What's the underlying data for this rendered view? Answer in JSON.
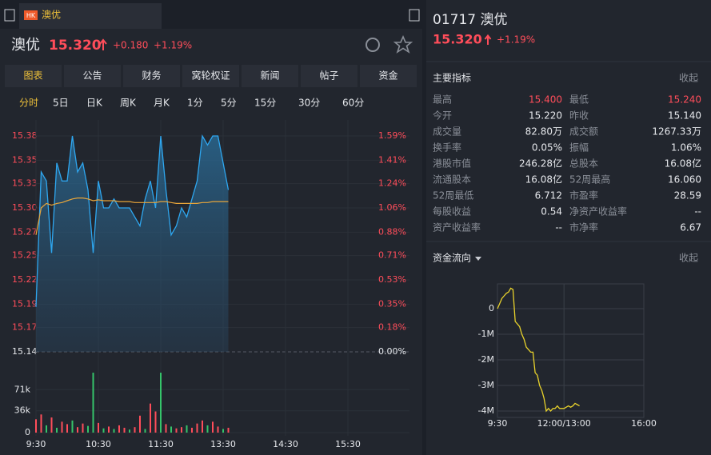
{
  "tab": {
    "badge": "HK",
    "name": "澳优"
  },
  "header": {
    "name": "澳优",
    "price": "15.320",
    "change": "+0.180",
    "pct": "+1.19%"
  },
  "tabs": [
    "图表",
    "公告",
    "财务",
    "窝轮权证",
    "新闻",
    "帖子",
    "资金"
  ],
  "periods": [
    "分时",
    "5日",
    "日K",
    "周K",
    "月K",
    "1分",
    "5分",
    "15分",
    "30分",
    "60分"
  ],
  "intraday": {
    "type": "line",
    "x": [
      "9:30",
      "9:35",
      "9:40",
      "9:45",
      "9:50",
      "9:55",
      "10:00",
      "10:05",
      "10:10",
      "10:15",
      "10:20",
      "10:25",
      "10:30",
      "10:35",
      "10:40",
      "10:45",
      "10:50",
      "10:55",
      "11:00",
      "11:05",
      "11:10",
      "11:15",
      "11:20",
      "11:25",
      "11:30",
      "11:35",
      "11:40",
      "11:45",
      "11:50",
      "11:55",
      "12:00",
      "13:05",
      "13:10",
      "13:15",
      "13:20",
      "13:25",
      "13:30",
      "13:35"
    ],
    "price": {
      "color": "#2ea7f0",
      "values": [
        15.19,
        15.34,
        15.33,
        15.25,
        15.35,
        15.33,
        15.33,
        15.38,
        15.34,
        15.35,
        15.32,
        15.25,
        15.33,
        15.3,
        15.3,
        15.31,
        15.3,
        15.3,
        15.3,
        15.29,
        15.28,
        15.31,
        15.33,
        15.3,
        15.38,
        15.32,
        15.27,
        15.28,
        15.3,
        15.29,
        15.31,
        15.33,
        15.38,
        15.37,
        15.38,
        15.38,
        15.35,
        15.32
      ]
    },
    "average": {
      "color": "#e8a53a",
      "values": [
        15.27,
        15.3,
        15.305,
        15.303,
        15.305,
        15.306,
        15.308,
        15.31,
        15.311,
        15.311,
        15.31,
        15.308,
        15.309,
        15.308,
        15.308,
        15.308,
        15.307,
        15.307,
        15.307,
        15.306,
        15.306,
        15.306,
        15.306,
        15.306,
        15.307,
        15.307,
        15.306,
        15.305,
        15.305,
        15.305,
        15.305,
        15.305,
        15.306,
        15.306,
        15.307,
        15.307,
        15.307,
        15.307
      ]
    },
    "xlim": [
      "9:30",
      "16:00"
    ],
    "xticks": [
      "9:30",
      "10:30",
      "11:30",
      "13:30",
      "14:30",
      "15:30"
    ],
    "ylim": [
      15.14,
      15.38
    ],
    "yticks": [
      {
        "value": 15.14,
        "label": "15.14"
      },
      {
        "value": 15.167,
        "label": "15.17"
      },
      {
        "value": 15.193,
        "label": "15.19"
      },
      {
        "value": 15.22,
        "label": "15.22"
      },
      {
        "value": 15.247,
        "label": "15.25"
      },
      {
        "value": 15.273,
        "label": "15.27"
      },
      {
        "value": 15.3,
        "label": "15.30"
      },
      {
        "value": 15.327,
        "label": "15.33"
      },
      {
        "value": 15.353,
        "label": "15.35"
      },
      {
        "value": 15.38,
        "label": "15.38"
      }
    ],
    "y2lim": [
      0,
      1.59
    ],
    "y2ticks": [
      {
        "value": 0,
        "label": "0.00%"
      },
      {
        "value": 0.18,
        "label": "0.18%"
      },
      {
        "value": 0.35,
        "label": "0.35%"
      },
      {
        "value": 0.53,
        "label": "0.53%"
      },
      {
        "value": 0.71,
        "label": "0.71%"
      },
      {
        "value": 0.88,
        "label": "0.88%"
      },
      {
        "value": 1.06,
        "label": "1.06%"
      },
      {
        "value": 1.24,
        "label": "1.24%"
      },
      {
        "value": 1.41,
        "label": "1.41%"
      },
      {
        "value": 1.59,
        "label": "1.59%"
      }
    ]
  },
  "volume": {
    "type": "bar",
    "values": [
      22000,
      30000,
      12000,
      25000,
      8000,
      18000,
      14000,
      20000,
      9000,
      15000,
      11000,
      99000,
      16000,
      7000,
      10000,
      6000,
      12000,
      8000,
      5000,
      9000,
      28000,
      6000,
      48000,
      35000,
      99000,
      14000,
      10000,
      7000,
      9000,
      12000,
      8000,
      15000,
      20000,
      12000,
      18000,
      10000,
      6000,
      8000
    ],
    "colors": [
      "#ff4d5a",
      "#ff4d5a",
      "#35c46a",
      "#ff4d5a",
      "#35c46a",
      "#ff4d5a",
      "#ff4d5a",
      "#35c46a",
      "#ff4d5a",
      "#ff4d5a",
      "#35c46a",
      "#35c46a",
      "#ff4d5a",
      "#35c46a",
      "#ff4d5a",
      "#35c46a",
      "#ff4d5a",
      "#ff4d5a",
      "#35c46a",
      "#ff4d5a",
      "#ff4d5a",
      "#35c46a",
      "#ff4d5a",
      "#ff4d5a",
      "#35c46a",
      "#ff4d5a",
      "#35c46a",
      "#ff4d5a",
      "#ff4d5a",
      "#35c46a",
      "#ff4d5a",
      "#ff4d5a",
      "#ff4d5a",
      "#35c46a",
      "#ff4d5a",
      "#ff4d5a",
      "#35c46a",
      "#ff4d5a"
    ],
    "ylim": [
      0,
      107000
    ],
    "yticks": [
      0,
      {
        "value": 36000,
        "label": "36k"
      },
      {
        "value": 71000,
        "label": "71k"
      }
    ]
  },
  "panel": {
    "title": "01717 澳优",
    "price": "15.320",
    "pct": "+1.19%"
  },
  "indicators": {
    "title": "主要指标",
    "collapse": "收起",
    "rows": [
      [
        {
          "label": "最高",
          "value": "15.400",
          "color": "#ff4d5a"
        },
        {
          "label": "最低",
          "value": "15.240",
          "color": "#ff4d5a"
        }
      ],
      [
        {
          "label": "今开",
          "value": "15.220"
        },
        {
          "label": "昨收",
          "value": "15.140"
        }
      ],
      [
        {
          "label": "成交量",
          "value": "82.80万"
        },
        {
          "label": "成交额",
          "value": "1267.33万"
        }
      ],
      [
        {
          "label": "换手率",
          "value": "0.05%"
        },
        {
          "label": "振幅",
          "value": "1.06%"
        }
      ],
      [
        {
          "label": "港股市值",
          "value": "246.28亿"
        },
        {
          "label": "总股本",
          "value": "16.08亿"
        }
      ],
      [
        {
          "label": "流通股本",
          "value": "16.08亿"
        },
        {
          "label": "52周最高",
          "value": "16.060"
        }
      ],
      [
        {
          "label": "52周最低",
          "value": "6.712"
        },
        {
          "label": "市盈率",
          "value": "28.59"
        }
      ],
      [
        {
          "label": "每股收益",
          "value": "0.54"
        },
        {
          "label": "净资产收益率",
          "value": "--"
        }
      ],
      [
        {
          "label": "资产收益率",
          "value": "--"
        },
        {
          "label": "市净率",
          "value": "6.67"
        }
      ]
    ]
  },
  "flow": {
    "type": "line",
    "title": "资金流向",
    "collapse": "收起",
    "color": "#e8d22c",
    "x": [
      "9:30",
      "9:35",
      "9:40",
      "9:45",
      "9:50",
      "9:55",
      "10:00",
      "10:05",
      "10:10",
      "10:15",
      "10:20",
      "10:25",
      "10:30",
      "10:35",
      "10:40",
      "10:45",
      "10:50",
      "10:55",
      "11:00",
      "11:05",
      "11:10",
      "11:15",
      "11:20",
      "11:25",
      "11:30",
      "11:35",
      "11:40",
      "11:45",
      "11:50",
      "11:55",
      "12:00",
      "13:05",
      "13:10",
      "13:15",
      "13:20",
      "13:25",
      "13:30",
      "13:35"
    ],
    "values": [
      0,
      200000,
      400000,
      500000,
      600000,
      650000,
      800000,
      750000,
      -500000,
      -600000,
      -700000,
      -1000000,
      -1200000,
      -1500000,
      -1600000,
      -1700000,
      -1700000,
      -2500000,
      -2600000,
      -3000000,
      -3200000,
      -3500000,
      -4000000,
      -3900000,
      -4000000,
      -3900000,
      -3900000,
      -3800000,
      -3900000,
      -3900000,
      -3900000,
      -3850000,
      -3800000,
      -3850000,
      -3800000,
      -3700000,
      -3750000,
      -3800000
    ],
    "ylim": [
      -4250000,
      970000
    ],
    "yticks": [
      0,
      {
        "value": -1000000,
        "label": "-1M"
      },
      {
        "value": -2000000,
        "label": "-2M"
      },
      {
        "value": -3000000,
        "label": "-3M"
      },
      {
        "value": -4000000,
        "label": "-4M"
      }
    ],
    "xlim": [
      "9:30",
      "16:00"
    ],
    "xticks": [
      {
        "value": "9:30",
        "label": "9:30"
      },
      {
        "value": "12:00",
        "label": "12:00/13:00"
      },
      {
        "value": "16:00",
        "label": "16:00"
      }
    ]
  }
}
